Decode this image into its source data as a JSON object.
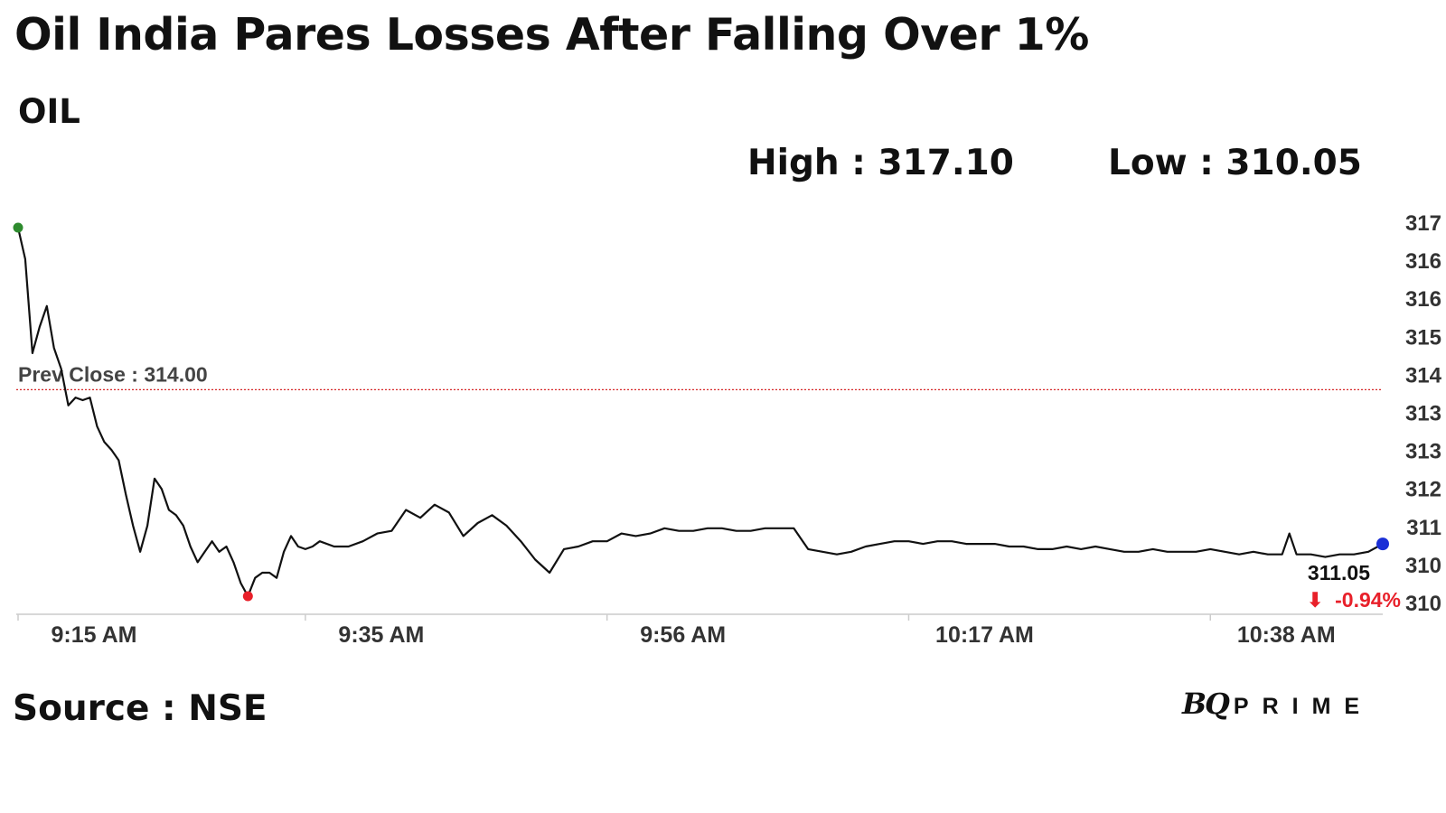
{
  "header": {
    "title": "Oil India Pares Losses After Falling Over 1%",
    "ticker": "OIL",
    "high_text": "High : 317.10",
    "low_text": "Low : 310.05"
  },
  "footer": {
    "source": "Source : NSE",
    "logo_bq": "BQ",
    "logo_prime": "PRIME"
  },
  "colors": {
    "line": "#111111",
    "prev_close_line": "#d62728",
    "start_dot": "#2e8b2e",
    "low_dot": "#e8202a",
    "end_dot": "#1a2fd6",
    "change_negative": "#e8202a"
  },
  "chart_data": {
    "type": "line",
    "title": "OIL",
    "x_ticks": [
      "9:15 AM",
      "9:35 AM",
      "9:56 AM",
      "10:17 AM",
      "10:38 AM"
    ],
    "x_tick_minutes": [
      0,
      20,
      41,
      62,
      83
    ],
    "y_ticks": [
      "317",
      "316",
      "316",
      "315",
      "314",
      "313",
      "313",
      "312",
      "311",
      "310",
      "310"
    ],
    "ylim": [
      310.05,
      317.1
    ],
    "prev_close": 314.0,
    "prev_close_label": "Prev Close : 314.00",
    "last_price_label": "311.05",
    "change_label": "-0.94%",
    "change_arrow": "⬇",
    "markers": {
      "start": 317.1,
      "low": 310.05,
      "end": 311.05
    },
    "grid": false,
    "series": [
      {
        "values": [
          [
            0,
            317.1
          ],
          [
            0.5,
            316.5
          ],
          [
            1,
            314.7
          ],
          [
            1.5,
            315.2
          ],
          [
            2,
            315.6
          ],
          [
            2.5,
            314.8
          ],
          [
            3,
            314.4
          ],
          [
            3.5,
            313.7
          ],
          [
            4,
            313.85
          ],
          [
            4.5,
            313.8
          ],
          [
            5,
            313.85
          ],
          [
            5.5,
            313.3
          ],
          [
            6,
            313.0
          ],
          [
            6.5,
            312.85
          ],
          [
            7,
            312.65
          ],
          [
            7.5,
            312.0
          ],
          [
            8,
            311.4
          ],
          [
            8.5,
            310.9
          ],
          [
            9,
            311.4
          ],
          [
            9.5,
            312.3
          ],
          [
            10,
            312.1
          ],
          [
            10.5,
            311.7
          ],
          [
            11,
            311.6
          ],
          [
            11.5,
            311.4
          ],
          [
            12,
            311.0
          ],
          [
            12.5,
            310.7
          ],
          [
            13,
            310.9
          ],
          [
            13.5,
            311.1
          ],
          [
            14,
            310.9
          ],
          [
            14.5,
            311.0
          ],
          [
            15,
            310.7
          ],
          [
            15.5,
            310.3
          ],
          [
            16,
            310.05
          ],
          [
            16.5,
            310.4
          ],
          [
            17,
            310.5
          ],
          [
            17.5,
            310.5
          ],
          [
            18,
            310.4
          ],
          [
            18.5,
            310.9
          ],
          [
            19,
            311.2
          ],
          [
            19.5,
            311.0
          ],
          [
            20,
            310.95
          ],
          [
            20.5,
            311.0
          ],
          [
            21,
            311.1
          ],
          [
            22,
            311.0
          ],
          [
            23,
            311.0
          ],
          [
            24,
            311.1
          ],
          [
            25,
            311.25
          ],
          [
            26,
            311.3
          ],
          [
            27,
            311.7
          ],
          [
            28,
            311.55
          ],
          [
            29,
            311.8
          ],
          [
            30,
            311.65
          ],
          [
            31,
            311.2
          ],
          [
            32,
            311.45
          ],
          [
            33,
            311.6
          ],
          [
            34,
            311.4
          ],
          [
            35,
            311.1
          ],
          [
            36,
            310.75
          ],
          [
            37,
            310.5
          ],
          [
            38,
            310.95
          ],
          [
            39,
            311.0
          ],
          [
            40,
            311.1
          ],
          [
            41,
            311.1
          ],
          [
            42,
            311.25
          ],
          [
            43,
            311.2
          ],
          [
            44,
            311.25
          ],
          [
            45,
            311.35
          ],
          [
            46,
            311.3
          ],
          [
            47,
            311.3
          ],
          [
            48,
            311.35
          ],
          [
            49,
            311.35
          ],
          [
            50,
            311.3
          ],
          [
            51,
            311.3
          ],
          [
            52,
            311.35
          ],
          [
            53,
            311.35
          ],
          [
            54,
            311.35
          ],
          [
            55,
            310.95
          ],
          [
            56,
            310.9
          ],
          [
            57,
            310.85
          ],
          [
            58,
            310.9
          ],
          [
            59,
            311.0
          ],
          [
            60,
            311.05
          ],
          [
            61,
            311.1
          ],
          [
            62,
            311.1
          ],
          [
            63,
            311.05
          ],
          [
            64,
            311.1
          ],
          [
            65,
            311.1
          ],
          [
            66,
            311.05
          ],
          [
            67,
            311.05
          ],
          [
            68,
            311.05
          ],
          [
            69,
            311.0
          ],
          [
            70,
            311.0
          ],
          [
            71,
            310.95
          ],
          [
            72,
            310.95
          ],
          [
            73,
            311.0
          ],
          [
            74,
            310.95
          ],
          [
            75,
            311.0
          ],
          [
            76,
            310.95
          ],
          [
            77,
            310.9
          ],
          [
            78,
            310.9
          ],
          [
            79,
            310.95
          ],
          [
            80,
            310.9
          ],
          [
            81,
            310.9
          ],
          [
            82,
            310.9
          ],
          [
            83,
            310.95
          ],
          [
            84,
            310.9
          ],
          [
            85,
            310.85
          ],
          [
            86,
            310.9
          ],
          [
            87,
            310.85
          ],
          [
            88,
            310.85
          ],
          [
            88.5,
            311.25
          ],
          [
            89,
            310.85
          ],
          [
            90,
            310.85
          ],
          [
            91,
            310.8
          ],
          [
            92,
            310.85
          ],
          [
            93,
            310.85
          ],
          [
            94,
            310.9
          ],
          [
            95,
            311.05
          ]
        ]
      }
    ]
  }
}
